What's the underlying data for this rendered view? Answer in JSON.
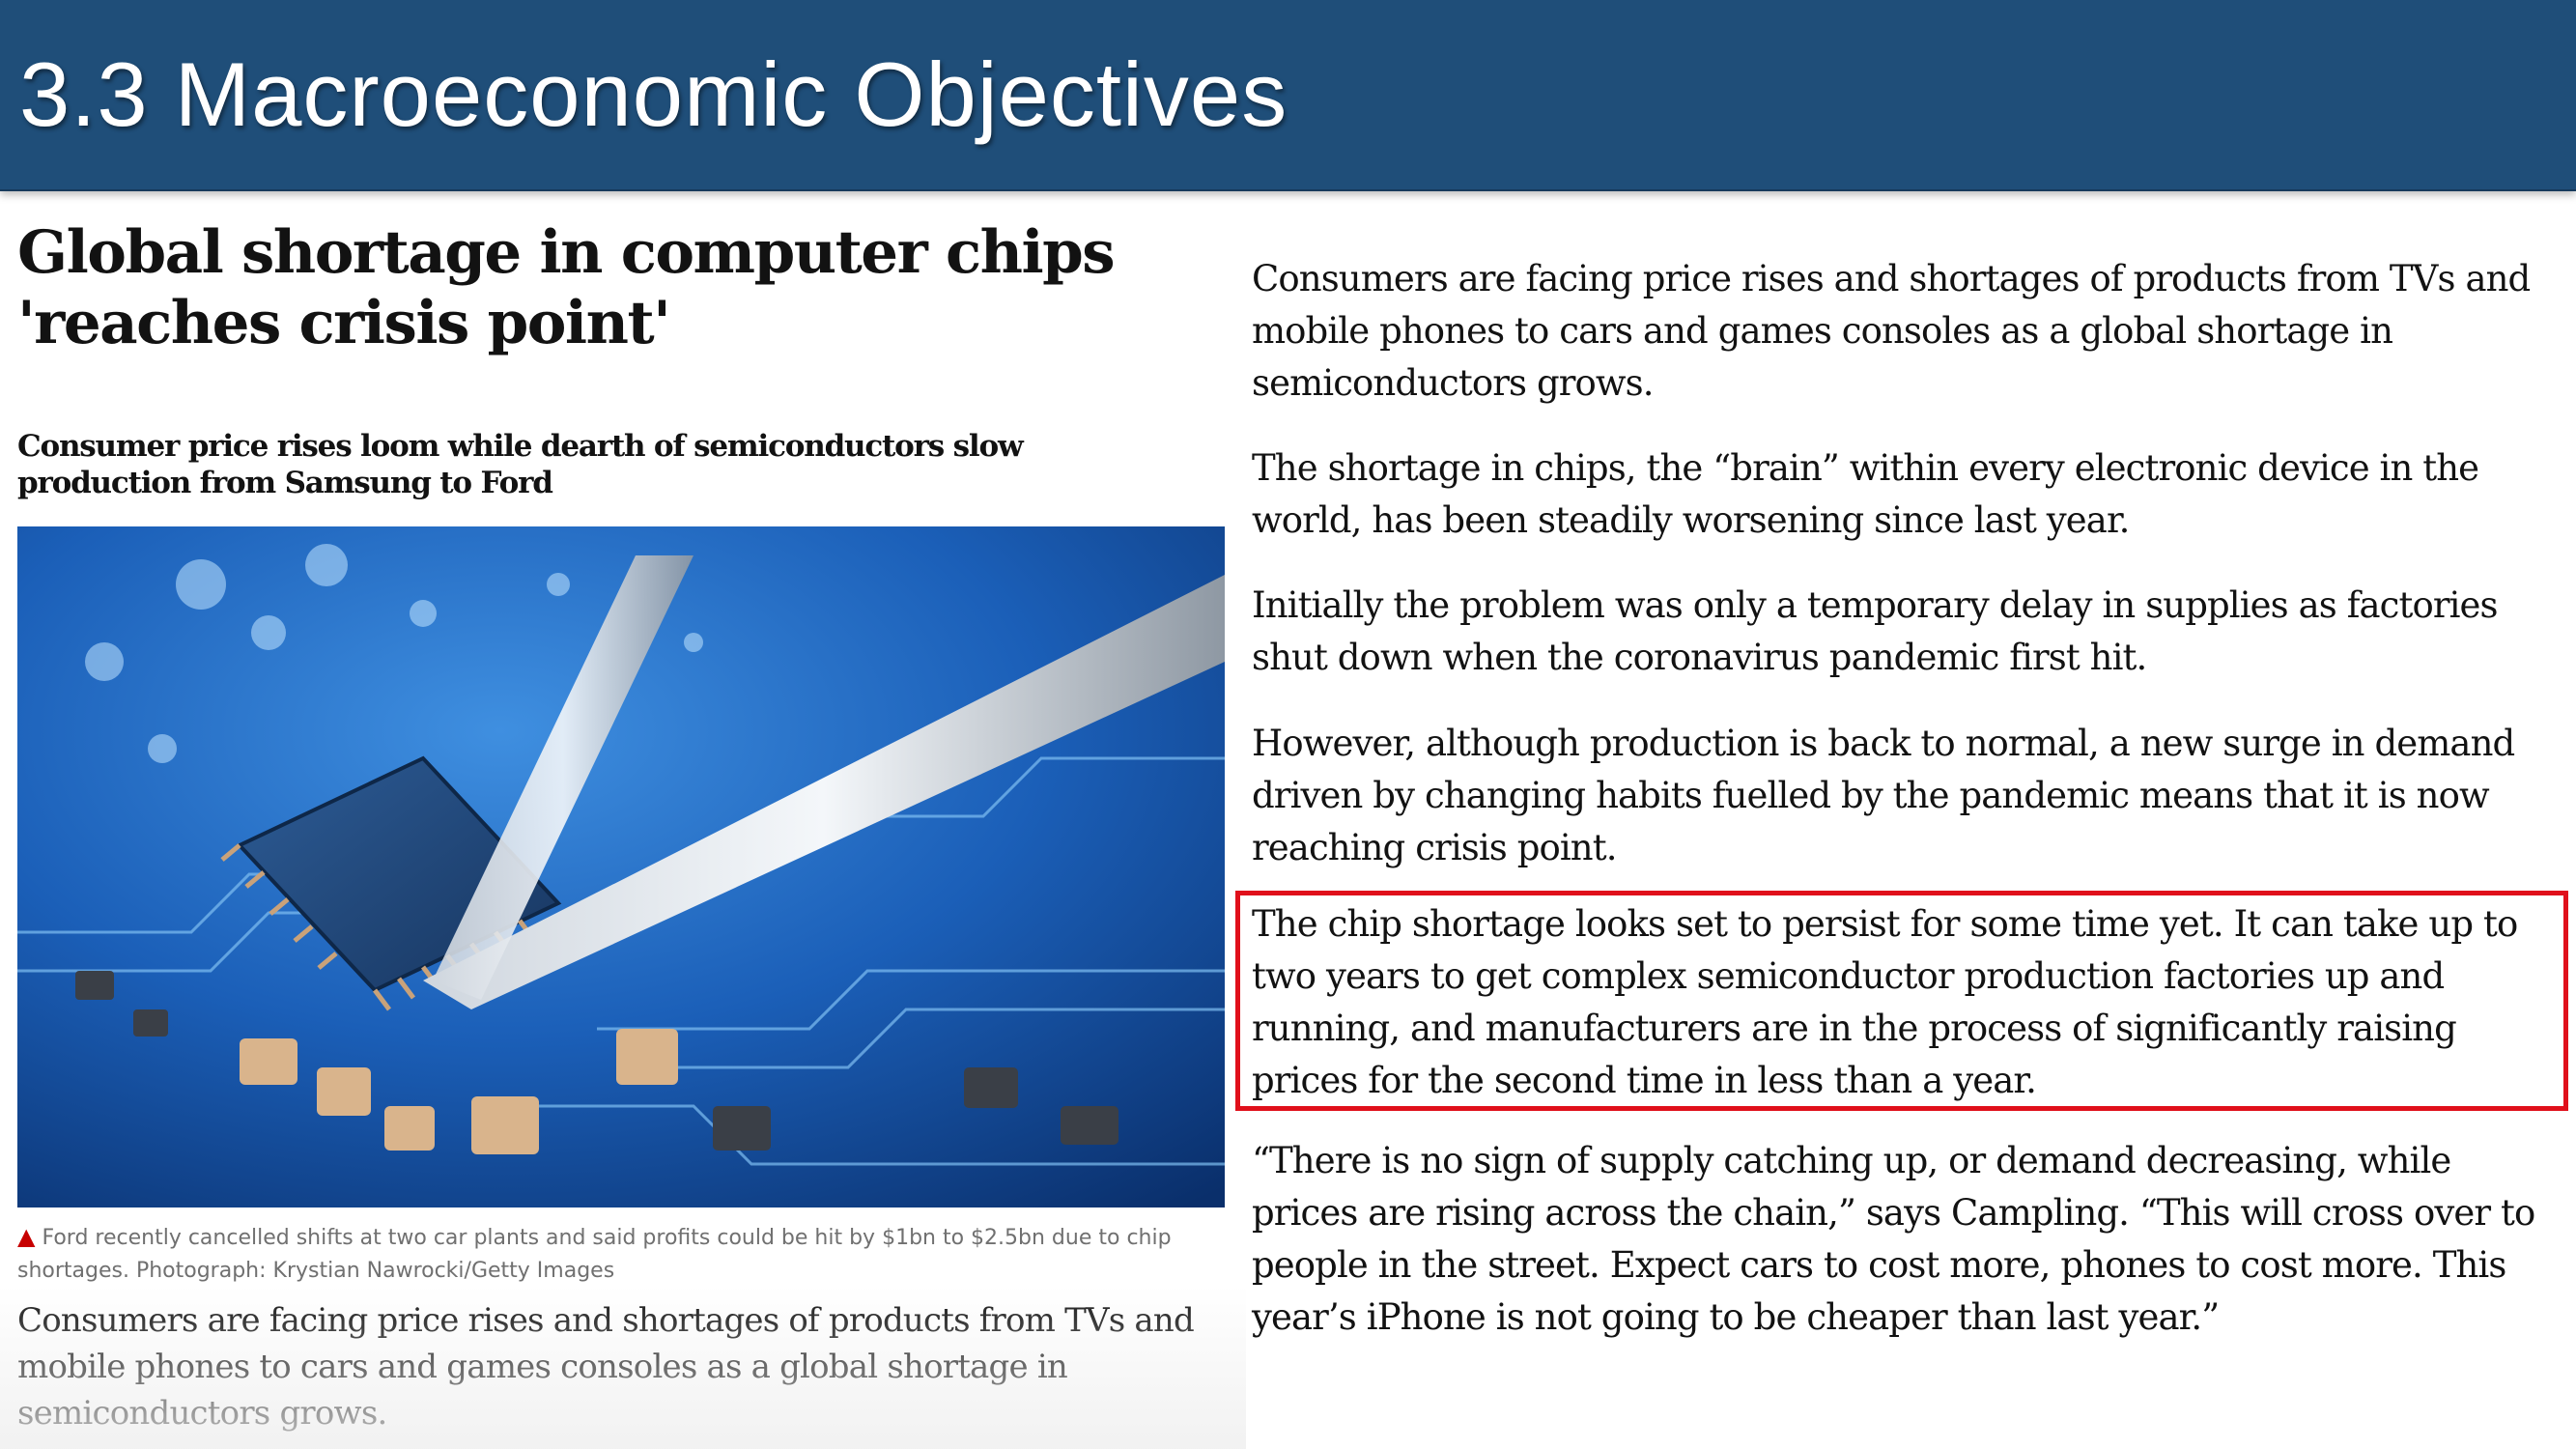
{
  "slide": {
    "title": "3.3 Macroeconomic Objectives"
  },
  "article": {
    "headline": "Global shortage in computer chips 'reaches crisis point'",
    "standfirst": "Consumer price rises loom while dearth of semiconductors slow production from Samsung to Ford",
    "photo": {
      "subject": "circuit-board-chip-tweezers"
    },
    "caption": {
      "marker": "▲",
      "text": "Ford recently cancelled shifts at two car plants and said profits could be hit by $1bn to $2.5bn due to chip shortages. Photograph: Krystian Nawrocki/Getty Images"
    },
    "lead_paragraph": "Consumers are facing price rises and shortages of products from TVs and mobile phones to cars and games consoles as a global shortage in semiconductors grows."
  },
  "body": {
    "paragraphs": [
      "Consumers are facing price rises and shortages of products from TVs and mobile phones to cars and games consoles as a global shortage in semiconductors grows.",
      "The shortage in chips, the “brain” within every electronic device in the world, has been steadily worsening since last year.",
      "Initially the problem was only a temporary delay in supplies as factories shut down when the coronavirus pandemic first hit.",
      "However, although production is back to normal, a new surge in demand driven by changing habits fuelled by the pandemic means that it is now reaching crisis point.",
      "The chip shortage looks set to persist for some time yet. It can take up to two years to get complex semiconductor production factories up and running, and manufacturers are in the process of significantly raising prices for the second time in less than a year.",
      "“There is no sign of supply catching up, or demand decreasing, while prices are rising across the chain,” says Campling. “This will cross over to people in the street. Expect cars to cost more, phones to cost more. This year’s iPhone is not going to be cheaper than last year.”"
    ],
    "highlighted_index": 4
  },
  "colors": {
    "title_bar": "#1f4e79",
    "highlight_border": "#e0101b",
    "caption_marker": "#c70000"
  }
}
